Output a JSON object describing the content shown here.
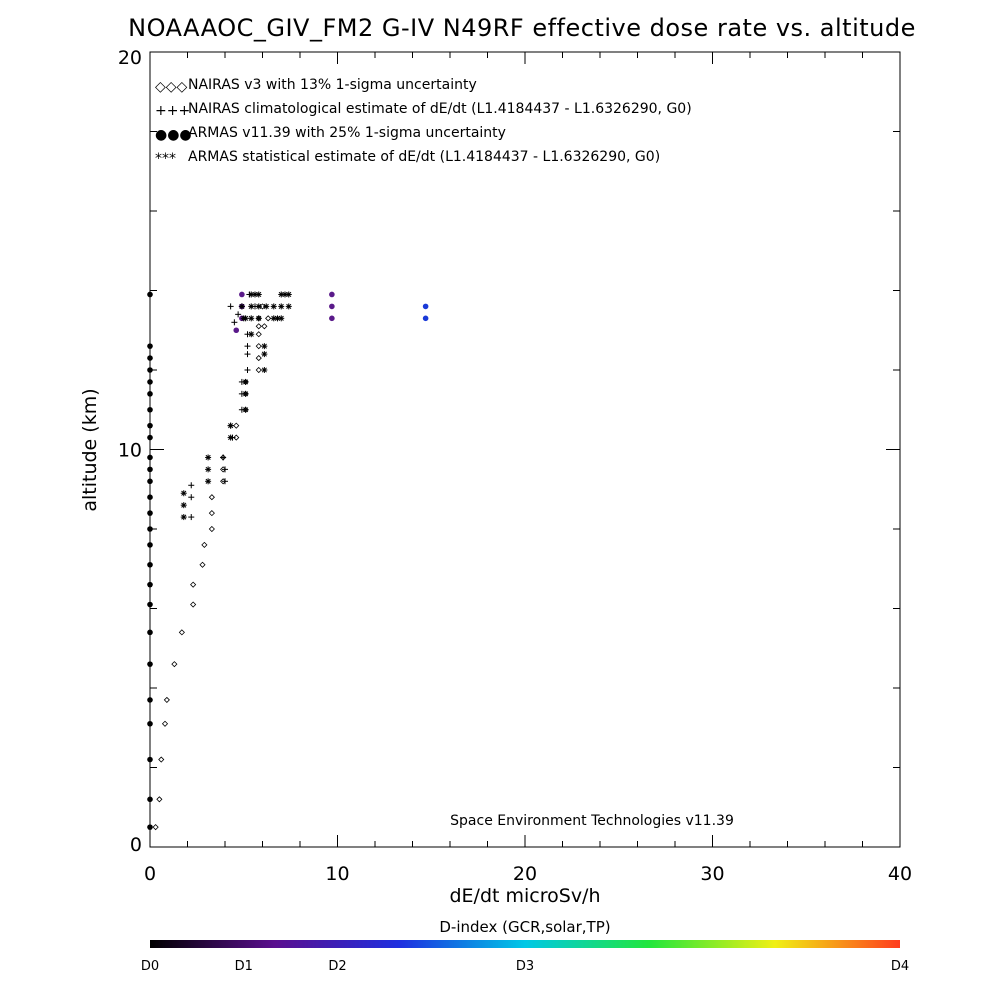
{
  "chart_data": {
    "type": "scatter",
    "title": "NOAAAOC_GIV_FM2 G-IV   N49RF  effective dose rate vs. altitude",
    "xlabel": "dE/dt microSv/h",
    "ylabel": "altitude (km)",
    "xlim": [
      0,
      40
    ],
    "ylim": [
      0,
      20
    ],
    "x_tick_labels": [
      "0",
      "10",
      "20",
      "30",
      "40"
    ],
    "y_tick_labels": [
      "0",
      "10",
      "20"
    ],
    "x_ticks": [
      0,
      10,
      20,
      30,
      40
    ],
    "y_ticks": [
      0,
      10,
      20
    ],
    "legend_position": "top-left",
    "legend": [
      {
        "marker": "◇◇◇",
        "label": "NAIRAS v3 with 13% 1-sigma uncertainty"
      },
      {
        "marker": "+++",
        "label": "NAIRAS climatological estimate of dE/dt (L1.4184437 - L1.6326290, G0)"
      },
      {
        "marker": "●●●",
        "label": "ARMAS v11.39 with 25% 1-sigma uncertainty"
      },
      {
        "marker": "***",
        "label": "ARMAS statistical estimate of dE/dt (L1.4184437 - L1.6326290, G0)"
      }
    ],
    "annotation": "Space Environment Technologies v11.39",
    "series": [
      {
        "name": "NAIRAS v3 with 13% 1-sigma uncertainty",
        "marker": "diamond",
        "points": [
          [
            0.3,
            0.5
          ],
          [
            0.5,
            1.2
          ],
          [
            0.6,
            2.2
          ],
          [
            0.8,
            3.1
          ],
          [
            0.9,
            3.7
          ],
          [
            1.3,
            4.6
          ],
          [
            1.7,
            5.4
          ],
          [
            2.3,
            6.1
          ],
          [
            2.3,
            6.6
          ],
          [
            2.8,
            7.1
          ],
          [
            2.9,
            7.6
          ],
          [
            3.3,
            8.0
          ],
          [
            3.3,
            8.4
          ],
          [
            3.3,
            8.8
          ],
          [
            3.9,
            9.2
          ],
          [
            3.9,
            9.5
          ],
          [
            3.9,
            9.8
          ],
          [
            4.6,
            10.3
          ],
          [
            4.6,
            10.6
          ],
          [
            5.1,
            11.0
          ],
          [
            5.1,
            11.4
          ],
          [
            5.1,
            11.7
          ],
          [
            5.8,
            12.0
          ],
          [
            5.8,
            12.3
          ],
          [
            5.8,
            12.6
          ],
          [
            5.8,
            12.9
          ],
          [
            5.8,
            13.1
          ],
          [
            5.8,
            13.3
          ],
          [
            6.1,
            13.1
          ],
          [
            6.3,
            13.3
          ],
          [
            6.0,
            13.6
          ]
        ]
      },
      {
        "name": "NAIRAS climatological estimate of dE/dt (L1.4184437 - L1.6326290, G0)",
        "marker": "plus",
        "points": [
          [
            2.2,
            8.3
          ],
          [
            2.2,
            8.8
          ],
          [
            2.2,
            9.1
          ],
          [
            3.9,
            9.8
          ],
          [
            4.0,
            9.5
          ],
          [
            4.0,
            9.2
          ],
          [
            4.3,
            10.6
          ],
          [
            4.4,
            10.3
          ],
          [
            4.9,
            11.0
          ],
          [
            4.9,
            11.4
          ],
          [
            4.9,
            11.7
          ],
          [
            5.2,
            12.0
          ],
          [
            5.2,
            12.4
          ],
          [
            5.2,
            12.6
          ],
          [
            5.2,
            12.9
          ],
          [
            4.5,
            13.2
          ],
          [
            4.7,
            13.4
          ],
          [
            4.9,
            13.6
          ],
          [
            5.3,
            13.9
          ],
          [
            5.6,
            13.6
          ],
          [
            4.3,
            13.6
          ]
        ]
      },
      {
        "name": "ARMAS v11.39 with 25% 1-sigma uncertainty",
        "marker": "dot",
        "points": [
          {
            "x": 0.0,
            "y": 0.5,
            "color": "#000000"
          },
          {
            "x": 0.0,
            "y": 1.2,
            "color": "#000000"
          },
          {
            "x": 0.0,
            "y": 2.2,
            "color": "#000000"
          },
          {
            "x": 0.0,
            "y": 3.1,
            "color": "#000000"
          },
          {
            "x": 0.0,
            "y": 3.7,
            "color": "#000000"
          },
          {
            "x": 0.0,
            "y": 4.6,
            "color": "#000000"
          },
          {
            "x": 0.0,
            "y": 5.4,
            "color": "#000000"
          },
          {
            "x": 0.0,
            "y": 6.1,
            "color": "#000000"
          },
          {
            "x": 0.0,
            "y": 6.6,
            "color": "#000000"
          },
          {
            "x": 0.0,
            "y": 7.1,
            "color": "#000000"
          },
          {
            "x": 0.0,
            "y": 7.6,
            "color": "#000000"
          },
          {
            "x": 0.0,
            "y": 8.0,
            "color": "#000000"
          },
          {
            "x": 0.0,
            "y": 8.4,
            "color": "#000000"
          },
          {
            "x": 0.0,
            "y": 8.8,
            "color": "#000000"
          },
          {
            "x": 0.0,
            "y": 9.2,
            "color": "#000000"
          },
          {
            "x": 0.0,
            "y": 9.5,
            "color": "#000000"
          },
          {
            "x": 0.0,
            "y": 9.8,
            "color": "#000000"
          },
          {
            "x": 0.0,
            "y": 10.3,
            "color": "#000000"
          },
          {
            "x": 0.0,
            "y": 10.6,
            "color": "#000000"
          },
          {
            "x": 0.0,
            "y": 11.0,
            "color": "#000000"
          },
          {
            "x": 0.0,
            "y": 11.4,
            "color": "#000000"
          },
          {
            "x": 0.0,
            "y": 11.7,
            "color": "#000000"
          },
          {
            "x": 0.0,
            "y": 12.0,
            "color": "#000000"
          },
          {
            "x": 0.0,
            "y": 12.3,
            "color": "#000000"
          },
          {
            "x": 0.0,
            "y": 12.6,
            "color": "#000000"
          },
          {
            "x": 0.0,
            "y": 13.9,
            "color": "#000000"
          },
          {
            "x": 4.9,
            "y": 13.9,
            "color": "#5a1a8a"
          },
          {
            "x": 4.9,
            "y": 13.6,
            "color": "#5a1a8a"
          },
          {
            "x": 4.9,
            "y": 13.3,
            "color": "#5a1a8a"
          },
          {
            "x": 4.6,
            "y": 13.0,
            "color": "#5a1a8a"
          },
          {
            "x": 9.7,
            "y": 13.9,
            "color": "#5a1a8a"
          },
          {
            "x": 9.7,
            "y": 13.6,
            "color": "#5a1a8a"
          },
          {
            "x": 9.7,
            "y": 13.3,
            "color": "#5a1a8a"
          },
          {
            "x": 14.7,
            "y": 13.6,
            "color": "#1a3ad8"
          },
          {
            "x": 14.7,
            "y": 13.3,
            "color": "#1a3ad8"
          }
        ]
      },
      {
        "name": "ARMAS statistical estimate of dE/dt (L1.4184437 - L1.6326290, G0)",
        "marker": "asterisk",
        "points": [
          [
            1.8,
            8.3
          ],
          [
            1.8,
            8.6
          ],
          [
            1.8,
            8.9
          ],
          [
            3.1,
            9.2
          ],
          [
            3.1,
            9.5
          ],
          [
            3.1,
            9.8
          ],
          [
            4.3,
            10.3
          ],
          [
            4.3,
            10.6
          ],
          [
            5.1,
            11.0
          ],
          [
            5.1,
            11.4
          ],
          [
            5.1,
            11.7
          ],
          [
            6.1,
            12.0
          ],
          [
            6.1,
            12.4
          ],
          [
            6.1,
            12.6
          ],
          [
            5.4,
            12.9
          ],
          [
            5.0,
            13.3
          ],
          [
            5.4,
            13.3
          ],
          [
            5.8,
            13.3
          ],
          [
            6.6,
            13.3
          ],
          [
            6.8,
            13.3
          ],
          [
            7.0,
            13.3
          ],
          [
            5.4,
            13.6
          ],
          [
            5.8,
            13.6
          ],
          [
            6.2,
            13.6
          ],
          [
            6.6,
            13.6
          ],
          [
            7.0,
            13.6
          ],
          [
            7.4,
            13.6
          ],
          [
            5.4,
            13.9
          ],
          [
            5.6,
            13.9
          ],
          [
            5.8,
            13.9
          ],
          [
            7.0,
            13.9
          ],
          [
            7.2,
            13.9
          ],
          [
            7.4,
            13.9
          ],
          [
            4.9,
            13.6
          ],
          [
            5.1,
            13.3
          ]
        ]
      }
    ],
    "colorbar": {
      "title": "D-index (GCR,solar,TP)",
      "labels": [
        {
          "text": "D0",
          "pos": 0.0
        },
        {
          "text": "D1",
          "pos": 0.125
        },
        {
          "text": "D2",
          "pos": 0.25
        },
        {
          "text": "D3",
          "pos": 0.5
        },
        {
          "text": "D4",
          "pos": 1.0
        }
      ],
      "colors": [
        "#000000",
        "#5a0f8f",
        "#1e2fe0",
        "#00c8e6",
        "#22e63c",
        "#f0f014",
        "#ff3c1e"
      ]
    }
  }
}
